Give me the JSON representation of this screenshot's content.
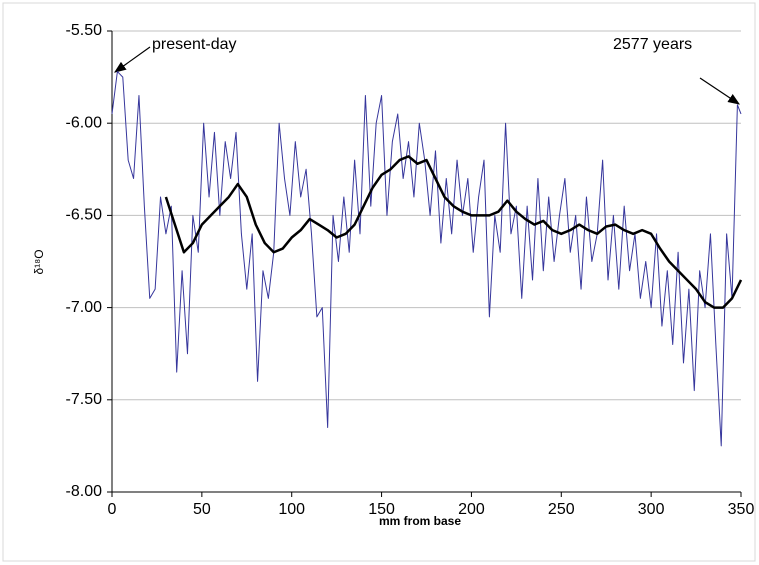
{
  "chart_data": {
    "type": "line",
    "x_label": "mm from base",
    "y_label": "δ¹⁸O",
    "annotations": [
      "present-day",
      "2577 years"
    ],
    "xlim": [
      0,
      350
    ],
    "xticks": [
      0,
      50,
      100,
      150,
      200,
      250,
      300,
      350
    ],
    "ylim": [
      -8,
      -5.5
    ],
    "yticks": [
      {
        "value": -8,
        "label": "-8.00"
      },
      {
        "value": -7.5,
        "label": "-7.50"
      },
      {
        "value": -7,
        "label": "-7.00"
      },
      {
        "value": -6.5,
        "label": "-6.50"
      },
      {
        "value": -6,
        "label": "-6.00"
      },
      {
        "value": -5.5,
        "label": "-5.50"
      }
    ],
    "grid": true,
    "series": [
      {
        "color": "#36369c",
        "width": 1,
        "x": [
          0,
          3,
          6,
          9,
          12,
          15,
          18,
          21,
          24,
          27,
          30,
          33,
          36,
          39,
          42,
          45,
          48,
          51,
          54,
          57,
          60,
          63,
          66,
          69,
          72,
          75,
          78,
          81,
          84,
          87,
          90,
          93,
          96,
          99,
          102,
          105,
          108,
          111,
          114,
          117,
          120,
          123,
          126,
          129,
          132,
          135,
          138,
          141,
          144,
          147,
          150,
          153,
          156,
          159,
          162,
          165,
          168,
          171,
          174,
          177,
          180,
          183,
          186,
          189,
          192,
          195,
          198,
          201,
          204,
          207,
          210,
          213,
          216,
          219,
          222,
          225,
          228,
          231,
          234,
          237,
          240,
          243,
          246,
          249,
          252,
          255,
          258,
          261,
          264,
          267,
          270,
          273,
          276,
          279,
          282,
          285,
          288,
          291,
          294,
          297,
          300,
          303,
          306,
          309,
          312,
          315,
          318,
          321,
          324,
          327,
          330,
          333,
          336,
          339,
          342,
          345,
          348,
          350
        ],
        "values": [
          -5.95,
          -5.72,
          -5.75,
          -6.2,
          -6.3,
          -5.85,
          -6.45,
          -6.95,
          -6.9,
          -6.4,
          -6.6,
          -6.45,
          -7.35,
          -6.8,
          -7.25,
          -6.5,
          -6.7,
          -6.0,
          -6.4,
          -6.05,
          -6.5,
          -6.1,
          -6.3,
          -6.05,
          -6.6,
          -6.9,
          -6.6,
          -7.4,
          -6.8,
          -6.95,
          -6.7,
          -6.0,
          -6.3,
          -6.5,
          -6.1,
          -6.4,
          -6.25,
          -6.6,
          -7.05,
          -7.0,
          -7.65,
          -6.5,
          -6.75,
          -6.4,
          -6.7,
          -6.2,
          -6.6,
          -5.85,
          -6.45,
          -6.0,
          -5.85,
          -6.5,
          -6.1,
          -5.95,
          -6.3,
          -6.1,
          -6.4,
          -6.0,
          -6.2,
          -6.5,
          -6.15,
          -6.65,
          -6.3,
          -6.6,
          -6.2,
          -6.5,
          -6.3,
          -6.7,
          -6.4,
          -6.2,
          -7.05,
          -6.5,
          -6.7,
          -6.0,
          -6.6,
          -6.45,
          -6.95,
          -6.45,
          -6.85,
          -6.3,
          -6.8,
          -6.4,
          -6.75,
          -6.5,
          -6.3,
          -6.7,
          -6.5,
          -6.9,
          -6.4,
          -6.75,
          -6.6,
          -6.2,
          -6.85,
          -6.5,
          -6.9,
          -6.45,
          -6.8,
          -6.6,
          -6.95,
          -6.75,
          -7.0,
          -6.6,
          -7.1,
          -6.8,
          -7.2,
          -6.7,
          -7.3,
          -6.9,
          -7.45,
          -6.8,
          -7.0,
          -6.6,
          -7.2,
          -7.75,
          -6.6,
          -6.95,
          -5.9,
          -5.95
        ]
      },
      {
        "color": "#000000",
        "width": 2.5,
        "x": [
          30,
          35,
          40,
          45,
          50,
          55,
          60,
          65,
          70,
          75,
          80,
          85,
          90,
          95,
          100,
          105,
          110,
          115,
          120,
          125,
          130,
          135,
          140,
          145,
          150,
          155,
          160,
          165,
          170,
          175,
          180,
          185,
          190,
          195,
          200,
          205,
          210,
          215,
          220,
          225,
          230,
          235,
          240,
          245,
          250,
          255,
          260,
          265,
          270,
          275,
          280,
          285,
          290,
          295,
          300,
          305,
          310,
          315,
          320,
          325,
          330,
          335,
          340,
          345,
          350
        ],
        "values": [
          -6.4,
          -6.55,
          -6.7,
          -6.65,
          -6.55,
          -6.5,
          -6.45,
          -6.4,
          -6.33,
          -6.4,
          -6.55,
          -6.65,
          -6.7,
          -6.68,
          -6.62,
          -6.58,
          -6.52,
          -6.55,
          -6.58,
          -6.62,
          -6.6,
          -6.55,
          -6.45,
          -6.35,
          -6.28,
          -6.25,
          -6.2,
          -6.18,
          -6.22,
          -6.2,
          -6.3,
          -6.4,
          -6.45,
          -6.48,
          -6.5,
          -6.5,
          -6.5,
          -6.48,
          -6.42,
          -6.48,
          -6.52,
          -6.55,
          -6.53,
          -6.58,
          -6.6,
          -6.58,
          -6.55,
          -6.58,
          -6.6,
          -6.56,
          -6.55,
          -6.58,
          -6.6,
          -6.58,
          -6.6,
          -6.68,
          -6.75,
          -6.8,
          -6.85,
          -6.9,
          -6.97,
          -7.0,
          -7.0,
          -6.95,
          -6.85
        ]
      }
    ]
  }
}
